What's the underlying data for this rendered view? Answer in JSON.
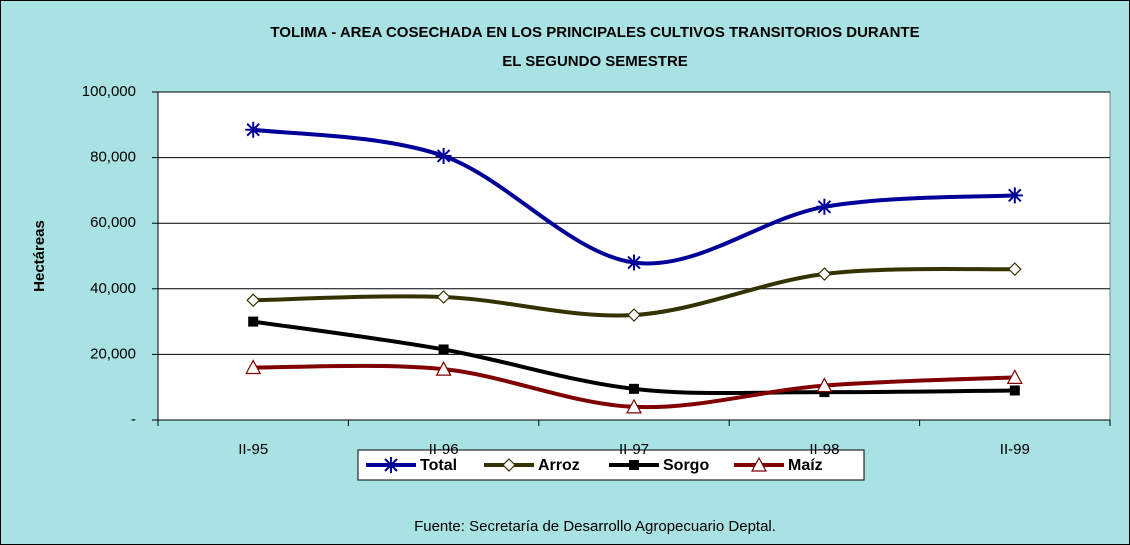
{
  "chart_data": {
    "type": "line",
    "title": [
      "TOLIMA - AREA COSECHADA EN LOS PRINCIPALES CULTIVOS TRANSITORIOS DURANTE",
      "EL SEGUNDO SEMESTRE"
    ],
    "ylabel": "Hectáreas",
    "source": "Fuente: Secretaría de Desarrollo Agropecuario Deptal.",
    "categories": [
      "II-95",
      "II-96",
      "II-97",
      "II-98",
      "II-99"
    ],
    "ylim": [
      0,
      100000
    ],
    "yticks": [
      {
        "value": 0,
        "label": "-"
      },
      {
        "value": 20000,
        "label": "20,000"
      },
      {
        "value": 40000,
        "label": "40,000"
      },
      {
        "value": 60000,
        "label": "60,000"
      },
      {
        "value": 80000,
        "label": "80,000"
      },
      {
        "value": 100000,
        "label": "100,000"
      }
    ],
    "grid": true,
    "legend": "bottom",
    "series": [
      {
        "name": "Total",
        "color": "#000099",
        "marker": "asterisk",
        "values": [
          88500,
          80500,
          48000,
          65000,
          68500
        ]
      },
      {
        "name": "Arroz",
        "color": "#333300",
        "marker": "diamond",
        "values": [
          36500,
          37500,
          32000,
          44500,
          46000
        ]
      },
      {
        "name": "Sorgo",
        "color": "#000000",
        "marker": "square",
        "values": [
          30000,
          21500,
          9500,
          8500,
          9000
        ]
      },
      {
        "name": "Maíz",
        "color": "#800000",
        "marker": "triangle",
        "values": [
          16000,
          15500,
          4000,
          10500,
          13000
        ]
      }
    ]
  }
}
